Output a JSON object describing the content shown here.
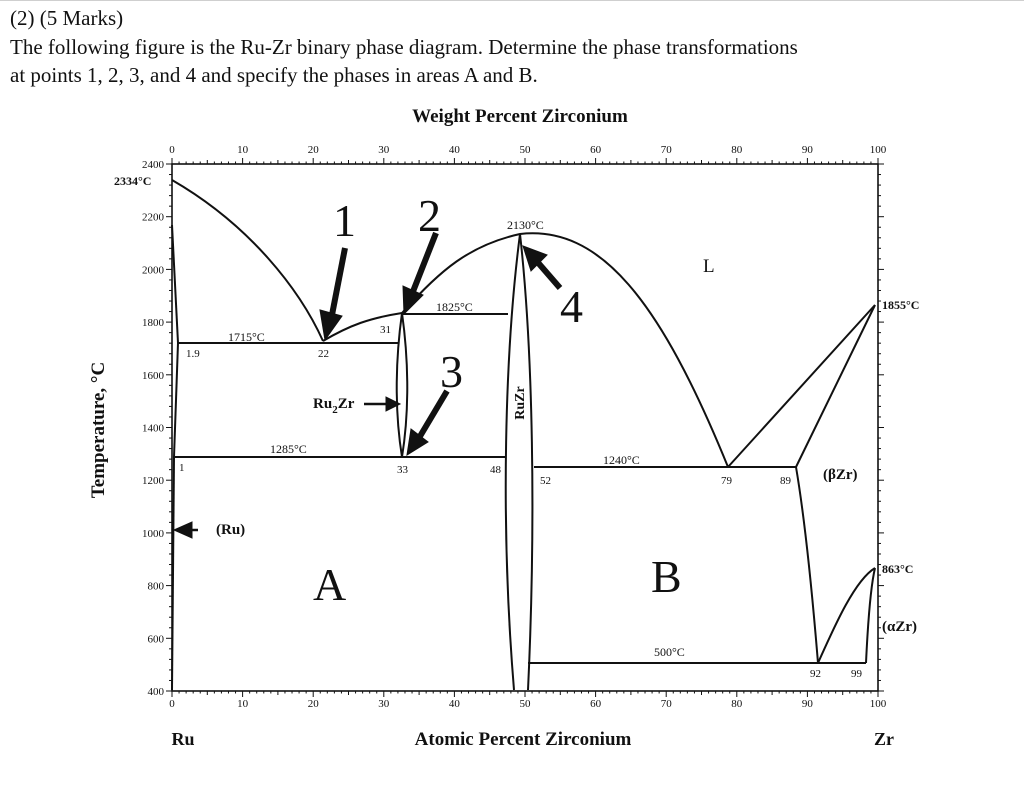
{
  "question": {
    "header": "(2) (5 Marks)",
    "lines": [
      "The following figure is the Ru-Zr binary phase diagram. Determine the phase transformations",
      "at points 1, 2, 3, and 4 and specify the phases in areas A and B."
    ]
  },
  "diagram": {
    "top_axis_title": "Weight Percent Zirconium",
    "bottom_axis_title": "Atomic Percent Zirconium",
    "y_axis_title": "Temperature, °C",
    "left_element": "Ru",
    "right_element": "Zr",
    "top_ticks": [
      "0",
      "10",
      "20",
      "30",
      "40",
      "50",
      "60",
      "70",
      "80",
      "90",
      "100"
    ],
    "bottom_ticks": [
      "0",
      "10",
      "20",
      "30",
      "40",
      "50",
      "60",
      "70",
      "80",
      "90",
      "100"
    ],
    "y_ticks": [
      "400",
      "600",
      "800",
      "1000",
      "1200",
      "1400",
      "1600",
      "1800",
      "2000",
      "2200",
      "2400"
    ],
    "temperatures": {
      "ru_melt": "2334°C",
      "eutectic_1": "1715°C",
      "peritectic": "1825°C",
      "congruent": "2130°C",
      "eutectic_2": "1240°C",
      "zr_melt": "1855°C",
      "eutectoid_low": "1285°C",
      "zr_transform": "863°C",
      "eutectoid_zr": "500°C"
    },
    "compositions": {
      "c1_9": "1.9",
      "c1": "1",
      "c22": "22",
      "c31": "31",
      "c33": "33",
      "c48": "48",
      "c52": "52",
      "c79": "79",
      "c89": "89",
      "c92": "92",
      "c99": "99"
    },
    "phases": {
      "liquid": "L",
      "ru": "(Ru)",
      "ru2zr": "Ru",
      "ru2zr_sub": "2",
      "ru2zr_tail": "Zr",
      "ruzr": "RuZr",
      "beta_zr": "(βZr)",
      "alpha_zr": "(αZr)"
    },
    "markers": [
      "1",
      "2",
      "3",
      "4"
    ],
    "areas": [
      "A",
      "B"
    ]
  }
}
